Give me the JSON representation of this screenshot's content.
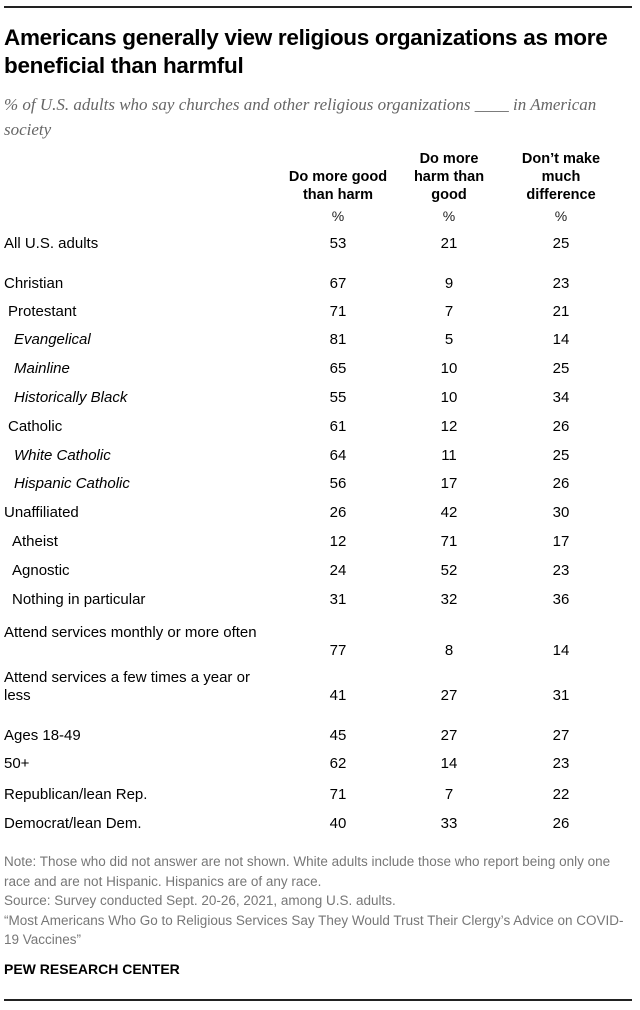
{
  "chart_data": {
    "type": "table",
    "title": "Americans generally view religious organizations as more beneficial than harmful",
    "subtitle": "% of U.S. adults who say churches and other religious organizations ____ in American society",
    "columns": [
      "Do more good than harm",
      "Do more harm than good",
      "Don’t make much difference"
    ],
    "unit": "%",
    "rows": [
      {
        "label": "All U.S. adults",
        "level": 0,
        "values": [
          53,
          21,
          25
        ]
      },
      {
        "label": "Christian",
        "level": 0,
        "values": [
          67,
          9,
          23
        ]
      },
      {
        "label": "Protestant",
        "level": 1,
        "values": [
          71,
          7,
          21
        ]
      },
      {
        "label": "Evangelical",
        "level": 2,
        "values": [
          81,
          5,
          14
        ]
      },
      {
        "label": "Mainline",
        "level": 2,
        "values": [
          65,
          10,
          25
        ]
      },
      {
        "label": "Historically Black",
        "level": 2,
        "values": [
          55,
          10,
          34
        ]
      },
      {
        "label": "Catholic",
        "level": 1,
        "values": [
          61,
          12,
          26
        ]
      },
      {
        "label": "White Catholic",
        "level": 2,
        "values": [
          64,
          11,
          25
        ]
      },
      {
        "label": "Hispanic Catholic",
        "level": 2,
        "values": [
          56,
          17,
          26
        ]
      },
      {
        "label": "Unaffiliated",
        "level": 0,
        "values": [
          26,
          42,
          30
        ]
      },
      {
        "label": "Atheist",
        "level": 3,
        "values": [
          12,
          71,
          17
        ]
      },
      {
        "label": "Agnostic",
        "level": 3,
        "values": [
          24,
          52,
          23
        ]
      },
      {
        "label": "Nothing in particular",
        "level": 3,
        "values": [
          31,
          32,
          36
        ]
      },
      {
        "label": "Attend services monthly or more often",
        "level": 0,
        "values": [
          77,
          8,
          14
        ]
      },
      {
        "label": "Attend services a few times a year or less",
        "level": 0,
        "values": [
          41,
          27,
          31
        ]
      },
      {
        "label": "Ages 18-49",
        "level": 0,
        "values": [
          45,
          27,
          27
        ]
      },
      {
        "label": "50+",
        "level": 0,
        "values": [
          62,
          14,
          23
        ]
      },
      {
        "label": "Republican/lean Rep.",
        "level": 0,
        "values": [
          71,
          7,
          22
        ]
      },
      {
        "label": "Democrat/lean Dem.",
        "level": 0,
        "values": [
          40,
          33,
          26
        ]
      }
    ]
  },
  "notes": {
    "note": "Note: Those who did not answer are not shown. White adults include those who report being only one race and are not Hispanic. Hispanics are of any race.",
    "source": "Source: Survey conducted Sept. 20-26, 2021, among U.S. adults.",
    "report": "“Most Americans Who Go to Religious Services Say They Would Trust Their Clergy’s Advice on COVID-19 Vaccines”"
  },
  "brand": "PEW RESEARCH CENTER"
}
